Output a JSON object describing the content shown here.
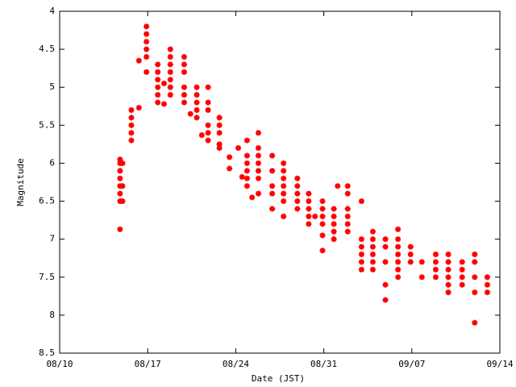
{
  "chart_data": {
    "type": "scatter",
    "color": "#ff0000",
    "x_label": "Date (JST)",
    "y_label": "Magnitude",
    "x": [
      4.8,
      4.8,
      4.8,
      4.8,
      4.8,
      4.8,
      4.8,
      4.8,
      5.0,
      5.0,
      5.0,
      5.7,
      5.7,
      5.7,
      5.7,
      5.7,
      6.3,
      6.3,
      6.9,
      6.9,
      6.9,
      6.9,
      6.9,
      6.9,
      7.8,
      7.8,
      7.8,
      7.8,
      7.8,
      7.8,
      8.3,
      8.3,
      8.8,
      8.8,
      8.8,
      8.8,
      8.8,
      8.8,
      8.8,
      9.9,
      9.9,
      9.9,
      9.9,
      9.9,
      9.9,
      10.4,
      10.9,
      10.9,
      10.9,
      10.9,
      10.9,
      11.3,
      11.8,
      11.8,
      11.8,
      11.8,
      11.8,
      11.8,
      12.7,
      12.7,
      12.7,
      12.7,
      12.7,
      13.5,
      13.5,
      14.2,
      14.5,
      14.9,
      14.9,
      14.9,
      14.9,
      14.9,
      14.9,
      15.3,
      15.8,
      15.8,
      15.8,
      15.8,
      15.8,
      15.8,
      15.8,
      16.9,
      16.9,
      16.9,
      16.9,
      16.9,
      17.8,
      17.8,
      17.8,
      17.8,
      17.8,
      17.8,
      17.8,
      18.9,
      18.9,
      18.9,
      18.9,
      18.9,
      19.8,
      19.8,
      19.8,
      19.8,
      19.8,
      20.3,
      20.9,
      20.9,
      20.9,
      20.9,
      20.9,
      20.9,
      21.8,
      21.8,
      21.8,
      21.8,
      21.8,
      22.1,
      22.9,
      22.9,
      22.9,
      22.9,
      22.9,
      22.9,
      24.0,
      24.0,
      24.0,
      24.0,
      24.0,
      24.0,
      24.9,
      24.9,
      24.9,
      24.9,
      24.9,
      24.9,
      25.9,
      25.9,
      25.9,
      25.9,
      25.9,
      26.9,
      26.9,
      26.9,
      26.9,
      26.9,
      26.9,
      26.9,
      27.9,
      27.9,
      27.9,
      28.8,
      28.8,
      29.9,
      29.9,
      29.9,
      29.9,
      30.9,
      30.9,
      30.9,
      30.9,
      30.9,
      30.9,
      32.0,
      32.0,
      32.0,
      32.0,
      33.0,
      33.0,
      33.0,
      33.0,
      33.0,
      34.0,
      34.0,
      34.0
    ],
    "values": [
      6.87,
      6.5,
      6.4,
      6.3,
      6.2,
      6.1,
      6.0,
      5.95,
      6.5,
      6.3,
      6.0,
      5.7,
      5.6,
      5.5,
      5.4,
      5.3,
      5.27,
      4.65,
      4.2,
      4.3,
      4.4,
      4.5,
      4.6,
      4.8,
      4.7,
      4.8,
      4.9,
      5.0,
      5.1,
      5.2,
      4.95,
      5.22,
      4.5,
      4.6,
      4.7,
      4.8,
      4.9,
      5.0,
      5.1,
      4.6,
      4.7,
      4.8,
      5.0,
      5.1,
      5.2,
      5.35,
      5.0,
      5.1,
      5.2,
      5.3,
      5.4,
      5.63,
      5.0,
      5.2,
      5.3,
      5.5,
      5.6,
      5.7,
      5.4,
      5.5,
      5.6,
      5.75,
      5.8,
      5.92,
      6.07,
      5.8,
      6.18,
      5.7,
      5.9,
      6.0,
      6.1,
      6.2,
      6.3,
      6.45,
      5.6,
      5.8,
      5.9,
      6.0,
      6.1,
      6.2,
      6.4,
      5.9,
      6.1,
      6.3,
      6.4,
      6.6,
      6.0,
      6.1,
      6.2,
      6.3,
      6.4,
      6.5,
      6.7,
      6.2,
      6.3,
      6.4,
      6.5,
      6.6,
      6.4,
      6.5,
      6.6,
      6.7,
      6.8,
      6.7,
      6.5,
      6.6,
      6.7,
      6.8,
      6.95,
      7.15,
      6.6,
      6.7,
      6.8,
      6.9,
      7.0,
      6.3,
      6.3,
      6.4,
      6.6,
      6.7,
      6.8,
      6.9,
      6.5,
      7.0,
      7.1,
      7.2,
      7.3,
      7.4,
      6.9,
      7.0,
      7.1,
      7.2,
      7.3,
      7.4,
      7.0,
      7.1,
      7.3,
      7.6,
      7.8,
      6.87,
      7.0,
      7.1,
      7.2,
      7.3,
      7.4,
      7.5,
      7.1,
      7.2,
      7.3,
      7.3,
      7.5,
      7.2,
      7.3,
      7.4,
      7.5,
      7.2,
      7.3,
      7.4,
      7.5,
      7.6,
      7.7,
      7.3,
      7.4,
      7.5,
      7.6,
      7.2,
      7.3,
      7.5,
      7.7,
      8.1,
      7.5,
      7.6,
      7.7
    ],
    "xlim": [
      0,
      35
    ],
    "xticks": [
      {
        "value": 0,
        "label": "08/10"
      },
      {
        "value": 7,
        "label": "08/17"
      },
      {
        "value": 14,
        "label": "08/24"
      },
      {
        "value": 21,
        "label": "08/31"
      },
      {
        "value": 28,
        "label": "09/07"
      },
      {
        "value": 35,
        "label": "09/14"
      }
    ],
    "ylim": [
      4,
      8.5
    ],
    "y_inverted": true,
    "yticks": [
      4,
      4.5,
      5,
      5.5,
      6,
      6.5,
      7,
      7.5,
      8,
      8.5
    ]
  }
}
